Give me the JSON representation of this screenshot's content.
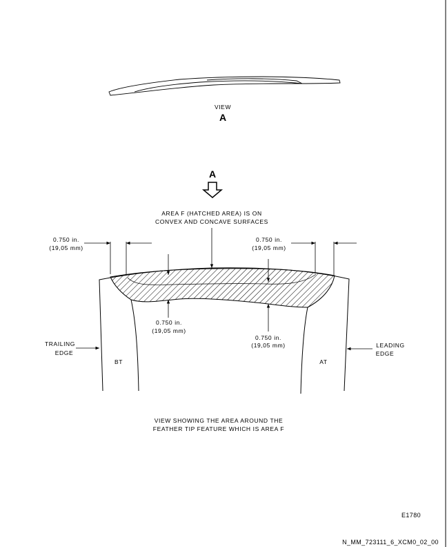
{
  "view_section": {
    "label": "VIEW",
    "letter": "A"
  },
  "arrow_section": {
    "letter": "A"
  },
  "callout_area": {
    "line1": "AREA F (HATCHED AREA) IS ON",
    "line2": "CONVEX AND CONCAVE SURFACES"
  },
  "dim_top_left": {
    "inch": "0.750 in.",
    "mm": "(19,05 mm)"
  },
  "dim_top_right": {
    "inch": "0.750 in.",
    "mm": "(19,05 mm)"
  },
  "dim_bottom_left": {
    "inch": "0.750 in.",
    "mm": "(19,05 mm)"
  },
  "dim_bottom_right": {
    "inch": "0.750 in.",
    "mm": "(19,05 mm)"
  },
  "trailing_edge": {
    "line1": "TRAILING",
    "line2": "EDGE"
  },
  "leading_edge": {
    "line1": "LEADING",
    "line2": "EDGE"
  },
  "marks": {
    "bt": "BT",
    "at": "AT"
  },
  "caption": {
    "line1": "VIEW SHOWING THE AREA AROUND THE",
    "line2": "FEATHER TIP FEATURE WHICH IS AREA F"
  },
  "figure_id": "E1780",
  "drawing_id": "N_MM_723111_6_XCM0_02_00"
}
